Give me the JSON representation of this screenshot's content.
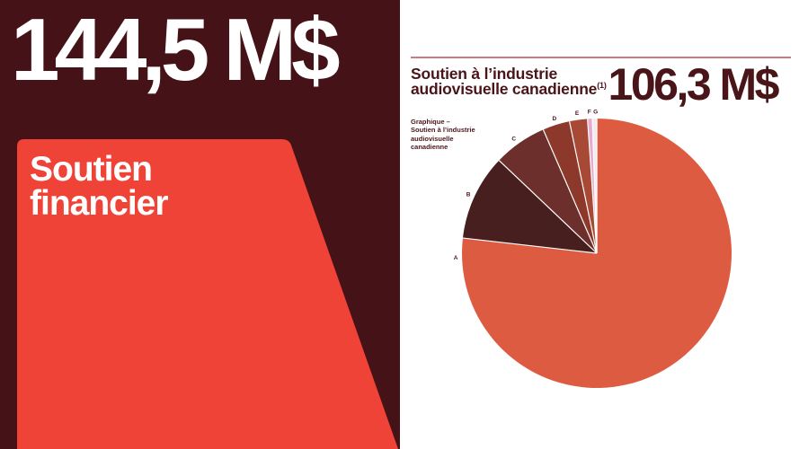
{
  "left_panel": {
    "headline": "144,5 M$",
    "card_title_line1": "Soutien",
    "card_title_line2": "financier",
    "bg_color": "#451217",
    "card_color": "#EE4336",
    "text_color": "#FFFFFF"
  },
  "right_panel": {
    "title_line1": "Soutien à l’l'industrie",
    "title_line2": "audiovisuelle canadienne",
    "title_superscript": "(1)",
    "headline": "106,3 M$",
    "caption_lines": [
      "Graphique –",
      "Soutien à l’industrie",
      "audiovisuelle",
      "canadienne"
    ],
    "rule_color": "#D0797D",
    "text_color": "#4A1519",
    "bg_color": "#FFFFFF"
  },
  "chart_data": {
    "type": "pie",
    "title": "Soutien à l’industrie audiovisuelle canadienne(1)",
    "total_label": "106,3 M$",
    "caption": "Graphique – Soutien à l’industrie audiovisuelle canadienne",
    "start_angle_deg": 0,
    "direction": "clockwise",
    "legend_position": "around-slices",
    "slices": [
      {
        "label": "A",
        "percent": 76.8,
        "color": "#DD5C41",
        "label_angle_deg": 268
      },
      {
        "label": "B",
        "percent": 10.3,
        "color": "#471F1E",
        "label_angle_deg": 294.5
      },
      {
        "label": "C",
        "percent": 6.4,
        "color": "#6C2F2B",
        "label_angle_deg": 324
      },
      {
        "label": "D",
        "percent": 3.25,
        "color": "#8C392C",
        "label_angle_deg": 342.5
      },
      {
        "label": "E",
        "percent": 2.15,
        "color": "#A84936",
        "label_angle_deg": 352
      },
      {
        "label": "F",
        "percent": 0.58,
        "color": "#E9AAD0",
        "label_angle_deg": 357
      },
      {
        "label": "G",
        "percent": 0.52,
        "color": "#F5E9EF",
        "label_angle_deg": 359.5
      }
    ]
  }
}
